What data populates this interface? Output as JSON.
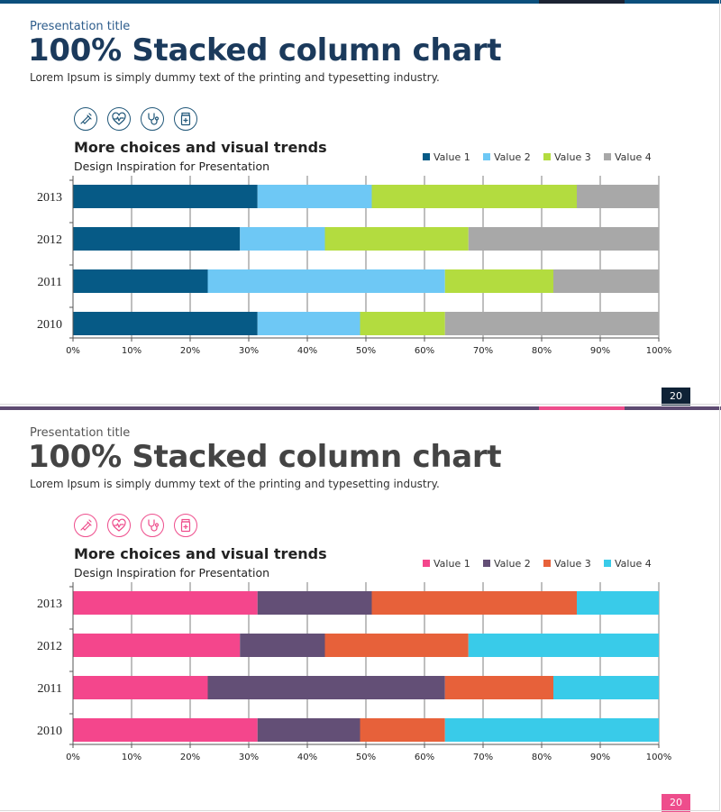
{
  "slides": [
    {
      "presentation_title": "Presentation title",
      "title": "100% Stacked column chart",
      "subtitle": "Lorem Ipsum is simply dummy text of the printing and typesetting industry.",
      "chart_heading": "More choices and visual  trends",
      "chart_subheading": "Design Inspiration  for Presentation",
      "page_number": "20",
      "icons": [
        "syringe-icon",
        "heart-pulse-icon",
        "stethoscope-icon",
        "medicine-bottle-icon"
      ],
      "colors": {
        "accent": "#0d3a63",
        "title": "#1b3a5c",
        "pres_title": "#2e5d8c",
        "topbar": "#0b4f7c",
        "topbar_segment": "#1c2333",
        "icon": "#1f5678",
        "badge": "#0f2236",
        "series": [
          "#065a86",
          "#6ec8f5",
          "#b3dc3f",
          "#a8a8a8"
        ]
      }
    },
    {
      "presentation_title": "Presentation title",
      "title": "100% Stacked column chart",
      "subtitle": "Lorem Ipsum is simply dummy text of the printing and typesetting industry.",
      "chart_heading": "More choices and visual  trends",
      "chart_subheading": "Design Inspiration  for Presentation",
      "page_number": "20",
      "icons": [
        "syringe-icon",
        "heart-pulse-icon",
        "stethoscope-icon",
        "medicine-bottle-icon"
      ],
      "colors": {
        "accent": "#ee4d8c",
        "title": "#444444",
        "pres_title": "#555555",
        "topbar": "#5e4b72",
        "topbar_segment": "#ee4d8c",
        "icon": "#ee4d8c",
        "badge": "#ee4d8c",
        "series": [
          "#f4468c",
          "#634f76",
          "#e7613a",
          "#39cbe9"
        ]
      }
    }
  ],
  "chart_data": [
    {
      "type": "bar",
      "orientation": "horizontal",
      "stacked": "percent",
      "title": "More choices and visual  trends",
      "subtitle": "Design Inspiration  for Presentation",
      "categories": [
        "2013",
        "2012",
        "2011",
        "2010"
      ],
      "series": [
        {
          "name": "Value  1",
          "values": [
            31.5,
            28.5,
            23,
            31.5
          ]
        },
        {
          "name": "Value  2",
          "values": [
            19.5,
            14.5,
            40.5,
            17.5
          ]
        },
        {
          "name": "Value  3",
          "values": [
            35,
            24.5,
            18.5,
            14.5
          ]
        },
        {
          "name": "Value  4",
          "values": [
            14,
            32.5,
            18,
            36.5
          ]
        }
      ],
      "xlim": [
        0,
        100
      ],
      "xticks": [
        "0%",
        "10%",
        "20%",
        "30%",
        "40%",
        "50%",
        "60%",
        "70%",
        "80%",
        "90%",
        "100%"
      ],
      "grid": true,
      "legend": "top-right"
    },
    {
      "type": "bar",
      "orientation": "horizontal",
      "stacked": "percent",
      "title": "More choices and visual  trends",
      "subtitle": "Design Inspiration  for Presentation",
      "categories": [
        "2013",
        "2012",
        "2011",
        "2010"
      ],
      "series": [
        {
          "name": "Value  1",
          "values": [
            31.5,
            28.5,
            23,
            31.5
          ]
        },
        {
          "name": "Value  2",
          "values": [
            19.5,
            14.5,
            40.5,
            17.5
          ]
        },
        {
          "name": "Value  3",
          "values": [
            35,
            24.5,
            18.5,
            14.5
          ]
        },
        {
          "name": "Value  4",
          "values": [
            14,
            32.5,
            18,
            36.5
          ]
        }
      ],
      "xlim": [
        0,
        100
      ],
      "xticks": [
        "0%",
        "10%",
        "20%",
        "30%",
        "40%",
        "50%",
        "60%",
        "70%",
        "80%",
        "90%",
        "100%"
      ],
      "grid": true,
      "legend": "top-right"
    }
  ]
}
